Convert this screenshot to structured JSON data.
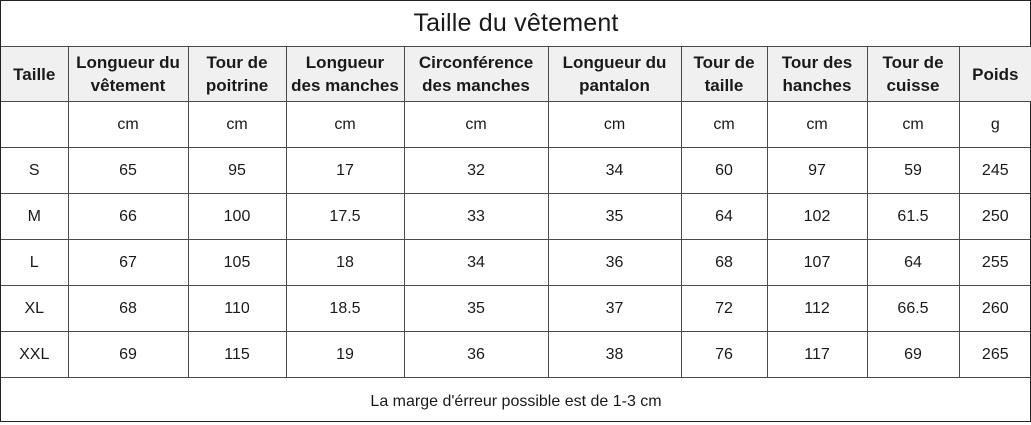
{
  "title": "Taille du vêtement",
  "headers": [
    "Taille",
    "Longueur du\nvêtement",
    "Tour de\npoitrine",
    "Longueur\ndes manches",
    "Circonférence\ndes manches",
    "Longueur du\npantalon",
    "Tour de\ntaille",
    "Tour des\nhanches",
    "Tour de\ncuisse",
    "Poids"
  ],
  "units": [
    "",
    "cm",
    "cm",
    "cm",
    "cm",
    "cm",
    "cm",
    "cm",
    "cm",
    "g"
  ],
  "rows": [
    [
      "S",
      "65",
      "95",
      "17",
      "32",
      "34",
      "60",
      "97",
      "59",
      "245"
    ],
    [
      "M",
      "66",
      "100",
      "17.5",
      "33",
      "35",
      "64",
      "102",
      "61.5",
      "250"
    ],
    [
      "L",
      "67",
      "105",
      "18",
      "34",
      "36",
      "68",
      "107",
      "64",
      "255"
    ],
    [
      "XL",
      "68",
      "110",
      "18.5",
      "35",
      "37",
      "72",
      "112",
      "66.5",
      "260"
    ],
    [
      "XXL",
      "69",
      "115",
      "19",
      "36",
      "38",
      "76",
      "117",
      "69",
      "265"
    ]
  ],
  "note": "La marge d'érreur possible est de 1-3 cm",
  "colors": {
    "header_background": "#f0f0f0",
    "border": "#4a4a4a"
  }
}
